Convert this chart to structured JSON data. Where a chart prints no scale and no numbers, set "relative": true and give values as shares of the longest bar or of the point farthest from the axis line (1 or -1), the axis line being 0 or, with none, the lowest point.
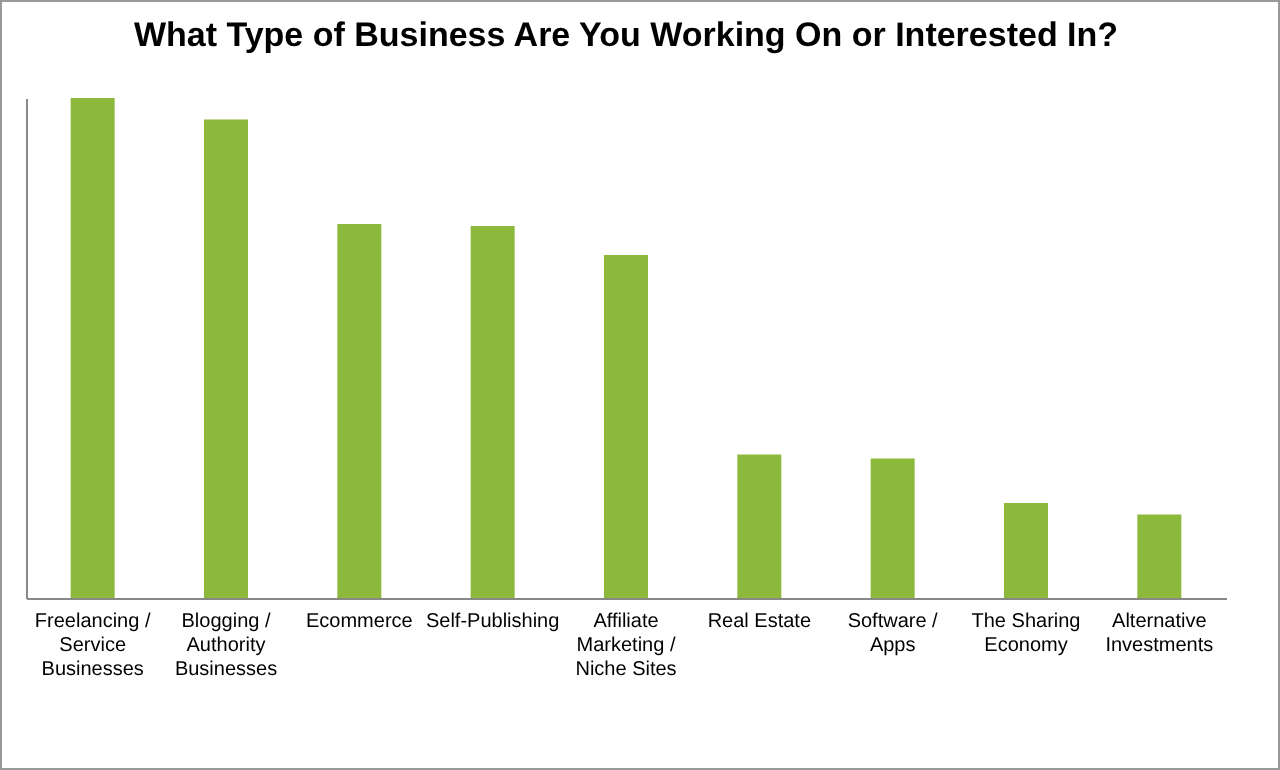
{
  "chart_data": {
    "type": "bar",
    "title": "What Type of Business Are You Working On or Interested In?",
    "categories": [
      "Freelancing / Service Businesses",
      "Blogging / Authority Businesses",
      "Ecommerce",
      "Self-Publishing",
      "Affiliate Marketing / Niche Sites",
      "Real Estate",
      "Software / Apps",
      "The Sharing Economy",
      "Alternative Investments"
    ],
    "values": [
      1,
      0.957,
      0.748,
      0.744,
      0.686,
      0.287,
      0.279,
      0.19,
      0.167
    ],
    "color": "#8cb83c",
    "relative": true
  }
}
